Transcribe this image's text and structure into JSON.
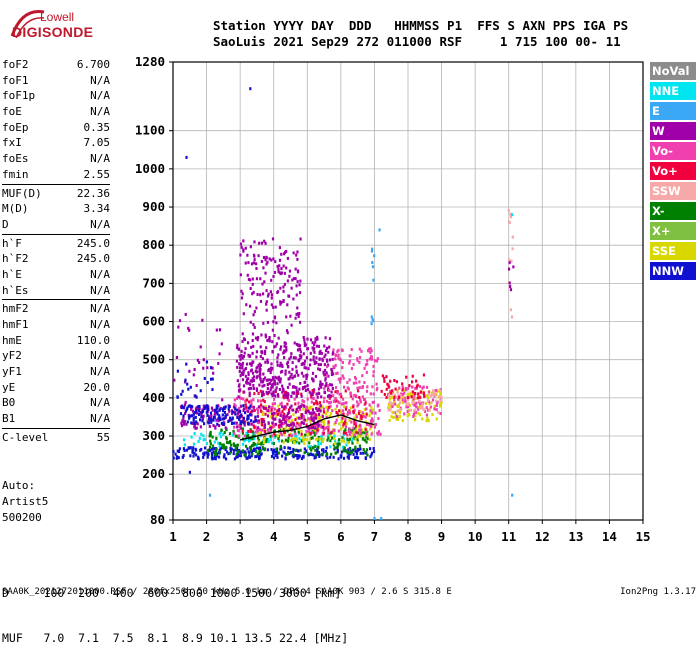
{
  "logo": {
    "line1": "Lowell",
    "line2": "DIGISONDE"
  },
  "header": {
    "labels": [
      "Station",
      "YYYY",
      "DAY",
      "DDD",
      "HHMMSS",
      "P1",
      "FFS",
      "S",
      "AXN",
      "PPS",
      "IGA",
      "PS"
    ],
    "values": [
      "SaoLuis",
      "2021",
      "Sep29",
      "272",
      "011000",
      "RSF",
      "1",
      "715",
      "100",
      "00-",
      "11"
    ]
  },
  "params": [
    {
      "k": "foF2",
      "v": "6.700"
    },
    {
      "k": "foF1",
      "v": "N/A"
    },
    {
      "k": "foF1p",
      "v": "N/A"
    },
    {
      "k": "foE",
      "v": "N/A"
    },
    {
      "k": "foEp",
      "v": "0.35"
    },
    {
      "k": "fxI",
      "v": "7.05"
    },
    {
      "k": "foEs",
      "v": "N/A"
    },
    {
      "k": "fmin",
      "v": "2.55"
    },
    {
      "k": "---"
    },
    {
      "k": "MUF(D)",
      "v": "22.36"
    },
    {
      "k": "M(D)",
      "v": "3.34"
    },
    {
      "k": "D",
      "v": "N/A"
    },
    {
      "k": "---"
    },
    {
      "k": "h`F",
      "v": "245.0"
    },
    {
      "k": "h`F2",
      "v": "245.0"
    },
    {
      "k": "h`E",
      "v": "N/A"
    },
    {
      "k": "h`Es",
      "v": "N/A"
    },
    {
      "k": "---"
    },
    {
      "k": "hmF2",
      "v": "N/A"
    },
    {
      "k": "hmF1",
      "v": "N/A"
    },
    {
      "k": "hmE",
      "v": "110.0"
    },
    {
      "k": "yF2",
      "v": "N/A"
    },
    {
      "k": "yF1",
      "v": "N/A"
    },
    {
      "k": "yE",
      "v": "20.0"
    },
    {
      "k": "B0",
      "v": "N/A"
    },
    {
      "k": "B1",
      "v": "N/A"
    },
    {
      "k": "---"
    },
    {
      "k": "C-level",
      "v": "55"
    }
  ],
  "auto": [
    "Auto:",
    "Artist5",
    "500200"
  ],
  "legend": [
    {
      "label": "NoVal",
      "color": "#8c8c8c"
    },
    {
      "label": "NNE",
      "color": "#00e5f0"
    },
    {
      "label": "E",
      "color": "#3aa8f5"
    },
    {
      "label": "W",
      "color": "#a000a8"
    },
    {
      "label": "Vo-",
      "color": "#f040b0"
    },
    {
      "label": "Vo+",
      "color": "#f0003c"
    },
    {
      "label": "SSW",
      "color": "#f7a8a8"
    },
    {
      "label": "X-",
      "color": "#008000"
    },
    {
      "label": "X+",
      "color": "#80c040"
    },
    {
      "label": "SSE",
      "color": "#d8d800"
    },
    {
      "label": "NNW",
      "color": "#1010d0"
    }
  ],
  "bottom": {
    "d_row": "D     100  200  400  600  800 1000 1500 3000 [km]",
    "muf_row": "MUF   7.0  7.1  7.5  8.1  8.9 10.1 13.5 22.4 [MHz]"
  },
  "footer": {
    "left": "SAA0K_2021272011000.RSF / 280fx256h 50 kHz 5.0 km / DPS-4 SAA0K 903 / 2.6 S 315.8 E",
    "right": "Ion2Png 1.3.17"
  },
  "chart_data": {
    "type": "scatter",
    "x_ticks": [
      1,
      2,
      3,
      4,
      5,
      6,
      7,
      8,
      9,
      10,
      11,
      12,
      13,
      14,
      15
    ],
    "y_ticks": [
      80,
      200,
      300,
      400,
      500,
      600,
      700,
      800,
      900,
      1000,
      1100,
      1280
    ],
    "xlim": [
      1,
      15
    ],
    "ylim": [
      80,
      1280
    ],
    "grid": true,
    "trace_x": [
      3.0,
      3.5,
      4.0,
      4.5,
      5.0,
      5.5,
      6.0,
      6.5,
      7.0
    ],
    "trace_y": [
      290,
      300,
      310,
      315,
      325,
      345,
      355,
      340,
      330
    ],
    "clusters": [
      {
        "x": [
          1.0,
          7.0
        ],
        "y": [
          240,
          270
        ],
        "color": "#1010d0",
        "n": 260
      },
      {
        "x": [
          1.3,
          6.5
        ],
        "y": [
          270,
          310
        ],
        "color": "#00e5f0",
        "n": 90
      },
      {
        "x": [
          2.0,
          6.8
        ],
        "y": [
          250,
          320
        ],
        "color": "#008000",
        "n": 220
      },
      {
        "x": [
          3.5,
          7.0
        ],
        "y": [
          280,
          380
        ],
        "color": "#d8d800",
        "n": 180
      },
      {
        "x": [
          2.8,
          7.2
        ],
        "y": [
          300,
          400
        ],
        "color": "#f040b0",
        "n": 250
      },
      {
        "x": [
          3.0,
          6.8
        ],
        "y": [
          300,
          420
        ],
        "color": "#f0003c",
        "n": 130
      },
      {
        "x": [
          1.2,
          5.5
        ],
        "y": [
          320,
          380
        ],
        "color": "#a000a8",
        "n": 200
      },
      {
        "x": [
          1.2,
          3.5
        ],
        "y": [
          330,
          380
        ],
        "color": "#1010d0",
        "n": 120
      },
      {
        "x": [
          2.9,
          5.8
        ],
        "y": [
          400,
          560
        ],
        "color": "#a000a8",
        "n": 420
      },
      {
        "x": [
          3.0,
          4.8
        ],
        "y": [
          560,
          820
        ],
        "color": "#a000a8",
        "n": 160
      },
      {
        "x": [
          5.5,
          7.1
        ],
        "y": [
          380,
          530
        ],
        "color": "#f040b0",
        "n": 110
      },
      {
        "x": [
          7.4,
          9.0
        ],
        "y": [
          340,
          420
        ],
        "color": "#d8d800",
        "n": 90
      },
      {
        "x": [
          7.4,
          9.0
        ],
        "y": [
          350,
          430
        ],
        "color": "#f040b0",
        "n": 80
      },
      {
        "x": [
          7.4,
          9.0
        ],
        "y": [
          360,
          420
        ],
        "color": "#f7a8a8",
        "n": 60
      },
      {
        "x": [
          7.2,
          8.5
        ],
        "y": [
          400,
          460
        ],
        "color": "#f0003c",
        "n": 40
      },
      {
        "x": [
          1.0,
          2.5
        ],
        "y": [
          380,
          620
        ],
        "color": "#a000a8",
        "n": 30
      },
      {
        "x": [
          1.0,
          2.2
        ],
        "y": [
          400,
          500
        ],
        "color": "#1010d0",
        "n": 20
      },
      {
        "x": [
          11.0,
          11.15
        ],
        "y": [
          560,
          900
        ],
        "color": "#f7a8a8",
        "n": 12
      },
      {
        "x": [
          11.0,
          11.15
        ],
        "y": [
          680,
          760
        ],
        "color": "#a000a8",
        "n": 6
      },
      {
        "x": [
          6.9,
          7.0
        ],
        "y": [
          500,
          840
        ],
        "color": "#3aa8f5",
        "n": 10
      }
    ],
    "points": [
      {
        "x": 1.4,
        "y": 1030,
        "color": "#1010d0"
      },
      {
        "x": 3.3,
        "y": 1210,
        "color": "#1010d0"
      },
      {
        "x": 1.5,
        "y": 205,
        "color": "#1010d0"
      },
      {
        "x": 2.1,
        "y": 145,
        "color": "#3aa8f5"
      },
      {
        "x": 11.1,
        "y": 145,
        "color": "#3aa8f5"
      },
      {
        "x": 11.1,
        "y": 880,
        "color": "#00e5f0"
      },
      {
        "x": 7.0,
        "y": 84,
        "color": "#3aa8f5"
      },
      {
        "x": 7.2,
        "y": 84,
        "color": "#3aa8f5"
      },
      {
        "x": 7.15,
        "y": 840,
        "color": "#3aa8f5"
      }
    ]
  }
}
